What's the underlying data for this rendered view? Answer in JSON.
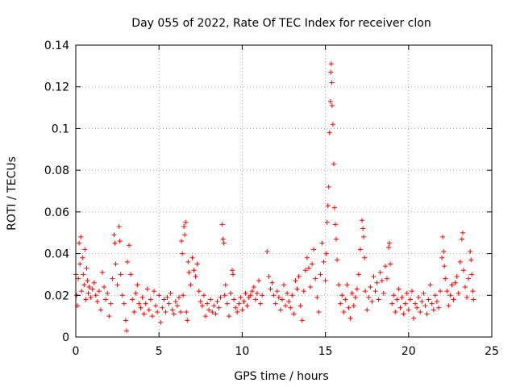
{
  "chart_data": {
    "type": "scatter",
    "title": "Day 055 of 2022, Rate Of TEC Index for receiver clon",
    "xlabel": "GPS time / hours",
    "ylabel": "ROTI / TECUs",
    "xlim": [
      0,
      25
    ],
    "ylim": [
      0,
      0.14
    ],
    "xticks": [
      0,
      5,
      10,
      15,
      20,
      25
    ],
    "xtick_labels": [
      "0",
      "5",
      "10",
      "15",
      "20",
      "25"
    ],
    "yticks": [
      0,
      0.02,
      0.04,
      0.06,
      0.08,
      0.1,
      0.12,
      0.14
    ],
    "ytick_labels": [
      "0",
      "0.02",
      "0.04",
      "0.06",
      "0.08",
      "0.1",
      "0.12",
      "0.14"
    ],
    "grid": true,
    "marker": "+",
    "color": "#ff0000",
    "series": [
      {
        "name": "ROTI",
        "points": [
          [
            0.0,
            0.03
          ],
          [
            0.05,
            0.02
          ],
          [
            0.1,
            0.015
          ],
          [
            0.15,
            0.028
          ],
          [
            0.2,
            0.045
          ],
          [
            0.25,
            0.035
          ],
          [
            0.3,
            0.048
          ],
          [
            0.35,
            0.022
          ],
          [
            0.4,
            0.038
          ],
          [
            0.45,
            0.03
          ],
          [
            0.5,
            0.025
          ],
          [
            0.55,
            0.042
          ],
          [
            0.6,
            0.018
          ],
          [
            0.65,
            0.033
          ],
          [
            0.7,
            0.027
          ],
          [
            0.75,
            0.021
          ],
          [
            0.8,
            0.024
          ],
          [
            0.9,
            0.019
          ],
          [
            1.0,
            0.023
          ],
          [
            1.1,
            0.026
          ],
          [
            1.2,
            0.02
          ],
          [
            1.3,
            0.017
          ],
          [
            1.4,
            0.022
          ],
          [
            1.5,
            0.013
          ],
          [
            1.6,
            0.031
          ],
          [
            1.7,
            0.024
          ],
          [
            1.8,
            0.018
          ],
          [
            1.9,
            0.021
          ],
          [
            2.0,
            0.01
          ],
          [
            2.1,
            0.016
          ],
          [
            2.2,
            0.028
          ],
          [
            2.3,
            0.049
          ],
          [
            2.35,
            0.045
          ],
          [
            2.4,
            0.035
          ],
          [
            2.5,
            0.025
          ],
          [
            2.6,
            0.053
          ],
          [
            2.65,
            0.046
          ],
          [
            2.7,
            0.03
          ],
          [
            2.8,
            0.02
          ],
          [
            2.9,
            0.016
          ],
          [
            3.0,
            0.008
          ],
          [
            3.05,
            0.003
          ],
          [
            3.1,
            0.036
          ],
          [
            3.2,
            0.044
          ],
          [
            3.3,
            0.03
          ],
          [
            3.4,
            0.018
          ],
          [
            3.5,
            0.012
          ],
          [
            3.6,
            0.021
          ],
          [
            3.7,
            0.025
          ],
          [
            3.8,
            0.016
          ],
          [
            3.9,
            0.014
          ],
          [
            4.0,
            0.019
          ],
          [
            4.1,
            0.011
          ],
          [
            4.2,
            0.016
          ],
          [
            4.3,
            0.023
          ],
          [
            4.4,
            0.013
          ],
          [
            4.5,
            0.018
          ],
          [
            4.6,
            0.01
          ],
          [
            4.7,
            0.022
          ],
          [
            4.8,
            0.015
          ],
          [
            4.9,
            0.012
          ],
          [
            5.0,
            0.02
          ],
          [
            5.1,
            0.007
          ],
          [
            5.2,
            0.014
          ],
          [
            5.3,
            0.018
          ],
          [
            5.4,
            0.012
          ],
          [
            5.5,
            0.019
          ],
          [
            5.6,
            0.016
          ],
          [
            5.7,
            0.021
          ],
          [
            5.8,
            0.013
          ],
          [
            5.9,
            0.011
          ],
          [
            6.0,
            0.017
          ],
          [
            6.1,
            0.015
          ],
          [
            6.2,
            0.019
          ],
          [
            6.3,
            0.012
          ],
          [
            6.35,
            0.046
          ],
          [
            6.4,
            0.04
          ],
          [
            6.45,
            0.02
          ],
          [
            6.5,
            0.053
          ],
          [
            6.55,
            0.049
          ],
          [
            6.6,
            0.055
          ],
          [
            6.65,
            0.012
          ],
          [
            6.7,
            0.008
          ],
          [
            6.75,
            0.036
          ],
          [
            6.8,
            0.031
          ],
          [
            6.9,
            0.025
          ],
          [
            7.0,
            0.038
          ],
          [
            7.1,
            0.032
          ],
          [
            7.2,
            0.029
          ],
          [
            7.3,
            0.035
          ],
          [
            7.4,
            0.022
          ],
          [
            7.5,
            0.017
          ],
          [
            7.6,
            0.015
          ],
          [
            7.7,
            0.02
          ],
          [
            7.8,
            0.01
          ],
          [
            7.9,
            0.016
          ],
          [
            8.0,
            0.013
          ],
          [
            8.1,
            0.018
          ],
          [
            8.2,
            0.012
          ],
          [
            8.3,
            0.015
          ],
          [
            8.4,
            0.011
          ],
          [
            8.5,
            0.017
          ],
          [
            8.6,
            0.014
          ],
          [
            8.7,
            0.019
          ],
          [
            8.8,
            0.054
          ],
          [
            8.85,
            0.047
          ],
          [
            8.9,
            0.045
          ],
          [
            8.95,
            0.02
          ],
          [
            9.0,
            0.025
          ],
          [
            9.1,
            0.016
          ],
          [
            9.2,
            0.01
          ],
          [
            9.3,
            0.021
          ],
          [
            9.4,
            0.032
          ],
          [
            9.45,
            0.03
          ],
          [
            9.5,
            0.018
          ],
          [
            9.6,
            0.014
          ],
          [
            9.7,
            0.012
          ],
          [
            9.8,
            0.016
          ],
          [
            9.9,
            0.019
          ],
          [
            10.0,
            0.013
          ],
          [
            10.1,
            0.017
          ],
          [
            10.2,
            0.021
          ],
          [
            10.3,
            0.015
          ],
          [
            10.4,
            0.019
          ],
          [
            10.5,
            0.02
          ],
          [
            10.6,
            0.022
          ],
          [
            10.7,
            0.024
          ],
          [
            10.8,
            0.018
          ],
          [
            10.9,
            0.021
          ],
          [
            11.0,
            0.027
          ],
          [
            11.1,
            0.016
          ],
          [
            11.2,
            0.02
          ],
          [
            11.5,
            0.041
          ],
          [
            11.6,
            0.029
          ],
          [
            11.7,
            0.023
          ],
          [
            11.8,
            0.026
          ],
          [
            11.9,
            0.02
          ],
          [
            12.0,
            0.016
          ],
          [
            12.1,
            0.022
          ],
          [
            12.2,
            0.019
          ],
          [
            12.3,
            0.013
          ],
          [
            12.4,
            0.018
          ],
          [
            12.5,
            0.025
          ],
          [
            12.6,
            0.015
          ],
          [
            12.7,
            0.021
          ],
          [
            12.8,
            0.017
          ],
          [
            12.9,
            0.014
          ],
          [
            13.0,
            0.02
          ],
          [
            13.1,
            0.011
          ],
          [
            13.2,
            0.027
          ],
          [
            13.3,
            0.023
          ],
          [
            13.4,
            0.029
          ],
          [
            13.5,
            0.015
          ],
          [
            13.6,
            0.008
          ],
          [
            13.7,
            0.022
          ],
          [
            13.8,
            0.032
          ],
          [
            13.9,
            0.038
          ],
          [
            14.0,
            0.033
          ],
          [
            14.1,
            0.024
          ],
          [
            14.2,
            0.035
          ],
          [
            14.3,
            0.042
          ],
          [
            14.4,
            0.028
          ],
          [
            14.5,
            0.019
          ],
          [
            14.6,
            0.012
          ],
          [
            14.7,
            0.03
          ],
          [
            14.8,
            0.045
          ],
          [
            14.9,
            0.036
          ],
          [
            15.0,
            0.027
          ],
          [
            15.05,
            0.04
          ],
          [
            15.1,
            0.055
          ],
          [
            15.15,
            0.063
          ],
          [
            15.2,
            0.072
          ],
          [
            15.25,
            0.098
          ],
          [
            15.3,
            0.113
          ],
          [
            15.32,
            0.127
          ],
          [
            15.35,
            0.131
          ],
          [
            15.38,
            0.122
          ],
          [
            15.4,
            0.111
          ],
          [
            15.45,
            0.102
          ],
          [
            15.5,
            0.083
          ],
          [
            15.55,
            0.062
          ],
          [
            15.6,
            0.054
          ],
          [
            15.65,
            0.047
          ],
          [
            15.7,
            0.037
          ],
          [
            15.8,
            0.025
          ],
          [
            15.9,
            0.016
          ],
          [
            16.0,
            0.02
          ],
          [
            16.1,
            0.012
          ],
          [
            16.2,
            0.018
          ],
          [
            16.3,
            0.025
          ],
          [
            16.4,
            0.014
          ],
          [
            16.5,
            0.009
          ],
          [
            16.6,
            0.021
          ],
          [
            16.7,
            0.015
          ],
          [
            16.8,
            0.019
          ],
          [
            16.9,
            0.023
          ],
          [
            17.0,
            0.03
          ],
          [
            17.1,
            0.042
          ],
          [
            17.2,
            0.056
          ],
          [
            17.25,
            0.052
          ],
          [
            17.3,
            0.048
          ],
          [
            17.35,
            0.038
          ],
          [
            17.4,
            0.022
          ],
          [
            17.5,
            0.013
          ],
          [
            17.6,
            0.019
          ],
          [
            17.7,
            0.024
          ],
          [
            17.8,
            0.017
          ],
          [
            17.9,
            0.029
          ],
          [
            18.0,
            0.022
          ],
          [
            18.1,
            0.026
          ],
          [
            18.2,
            0.018
          ],
          [
            18.3,
            0.031
          ],
          [
            18.4,
            0.027
          ],
          [
            18.5,
            0.021
          ],
          [
            18.6,
            0.034
          ],
          [
            18.7,
            0.028
          ],
          [
            18.8,
            0.043
          ],
          [
            18.85,
            0.045
          ],
          [
            18.9,
            0.035
          ],
          [
            19.0,
            0.016
          ],
          [
            19.1,
            0.02
          ],
          [
            19.2,
            0.012
          ],
          [
            19.3,
            0.018
          ],
          [
            19.4,
            0.023
          ],
          [
            19.5,
            0.014
          ],
          [
            19.6,
            0.019
          ],
          [
            19.7,
            0.011
          ],
          [
            19.8,
            0.016
          ],
          [
            19.9,
            0.021
          ],
          [
            20.0,
            0.013
          ],
          [
            20.1,
            0.018
          ],
          [
            20.2,
            0.022
          ],
          [
            20.3,
            0.009
          ],
          [
            20.4,
            0.016
          ],
          [
            20.5,
            0.014
          ],
          [
            20.6,
            0.019
          ],
          [
            20.7,
            0.012
          ],
          [
            20.8,
            0.017
          ],
          [
            20.9,
            0.021
          ],
          [
            21.0,
            0.015
          ],
          [
            21.1,
            0.011
          ],
          [
            21.2,
            0.018
          ],
          [
            21.3,
            0.025
          ],
          [
            21.4,
            0.016
          ],
          [
            21.5,
            0.013
          ],
          [
            21.6,
            0.02
          ],
          [
            21.7,
            0.017
          ],
          [
            21.8,
            0.014
          ],
          [
            21.9,
            0.022
          ],
          [
            22.0,
            0.038
          ],
          [
            22.05,
            0.048
          ],
          [
            22.1,
            0.041
          ],
          [
            22.15,
            0.034
          ],
          [
            22.2,
            0.028
          ],
          [
            22.3,
            0.022
          ],
          [
            22.4,
            0.015
          ],
          [
            22.5,
            0.02
          ],
          [
            22.6,
            0.025
          ],
          [
            22.7,
            0.018
          ],
          [
            22.8,
            0.026
          ],
          [
            22.9,
            0.029
          ],
          [
            23.0,
            0.021
          ],
          [
            23.1,
            0.036
          ],
          [
            23.2,
            0.047
          ],
          [
            23.25,
            0.05
          ],
          [
            23.3,
            0.032
          ],
          [
            23.4,
            0.024
          ],
          [
            23.5,
            0.019
          ],
          [
            23.6,
            0.028
          ],
          [
            23.7,
            0.041
          ],
          [
            23.75,
            0.037
          ],
          [
            23.8,
            0.03
          ],
          [
            23.85,
            0.022
          ],
          [
            23.9,
            0.018
          ]
        ]
      }
    ]
  }
}
